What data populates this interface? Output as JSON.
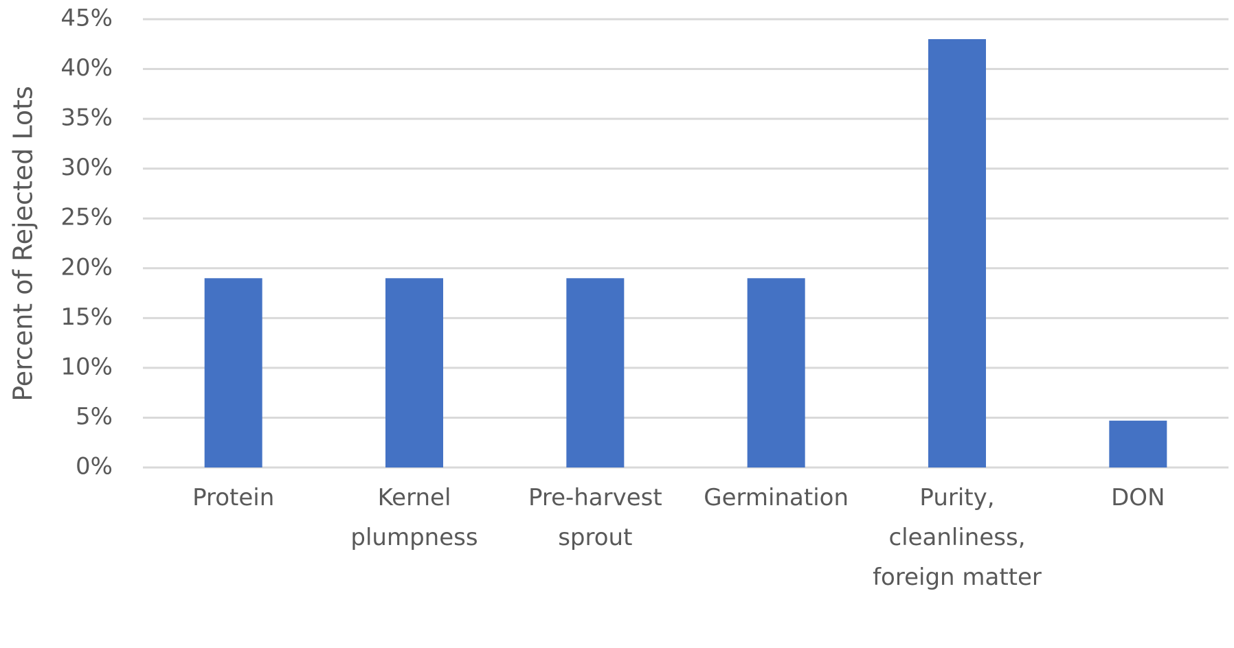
{
  "chart_data": {
    "type": "bar",
    "y_label": "Percent of Rejected Lots",
    "categories": [
      "Protein",
      "Kernel plumpness",
      "Pre-harvest sprout",
      "Germination",
      "Purity, cleanliness, foreign matter",
      "DON"
    ],
    "values": [
      19,
      19,
      19,
      19,
      43,
      4.7
    ],
    "color": "#4472c4",
    "ylim": [
      0,
      45
    ],
    "yticks": [
      {
        "value": 0,
        "label": "0%"
      },
      {
        "value": 5,
        "label": "5%"
      },
      {
        "value": 10,
        "label": "10%"
      },
      {
        "value": 15,
        "label": "15%"
      },
      {
        "value": 20,
        "label": "20%"
      },
      {
        "value": 25,
        "label": "25%"
      },
      {
        "value": 30,
        "label": "30%"
      },
      {
        "value": 35,
        "label": "35%"
      },
      {
        "value": 40,
        "label": "40%"
      },
      {
        "value": 45,
        "label": "45%"
      }
    ],
    "grid": true
  }
}
